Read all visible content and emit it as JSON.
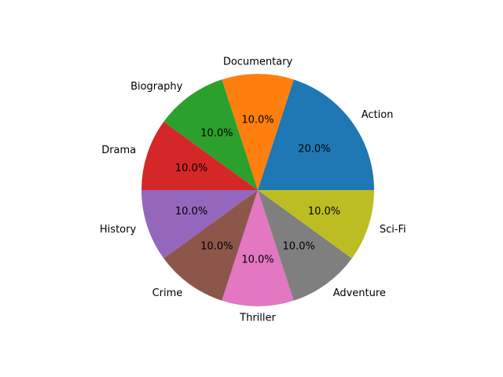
{
  "chart_data": {
    "type": "pie",
    "categories": [
      "Action",
      "Documentary",
      "Biography",
      "Drama",
      "History",
      "Crime",
      "Thriller",
      "Adventure",
      "Sci-Fi"
    ],
    "values": [
      20.0,
      10.0,
      10.0,
      10.0,
      10.0,
      10.0,
      10.0,
      10.0,
      10.0
    ],
    "percent_labels": [
      "20.0%",
      "10.0%",
      "10.0%",
      "10.0%",
      "10.0%",
      "10.0%",
      "10.0%",
      "10.0%",
      "10.0%"
    ],
    "colors": [
      "#1f77b4",
      "#ff7f0e",
      "#2ca02c",
      "#d62728",
      "#9467bd",
      "#8c564b",
      "#e377c2",
      "#7f7f7f",
      "#bcbd22"
    ],
    "start_angle_deg": 0,
    "direction": "counterclockwise"
  }
}
